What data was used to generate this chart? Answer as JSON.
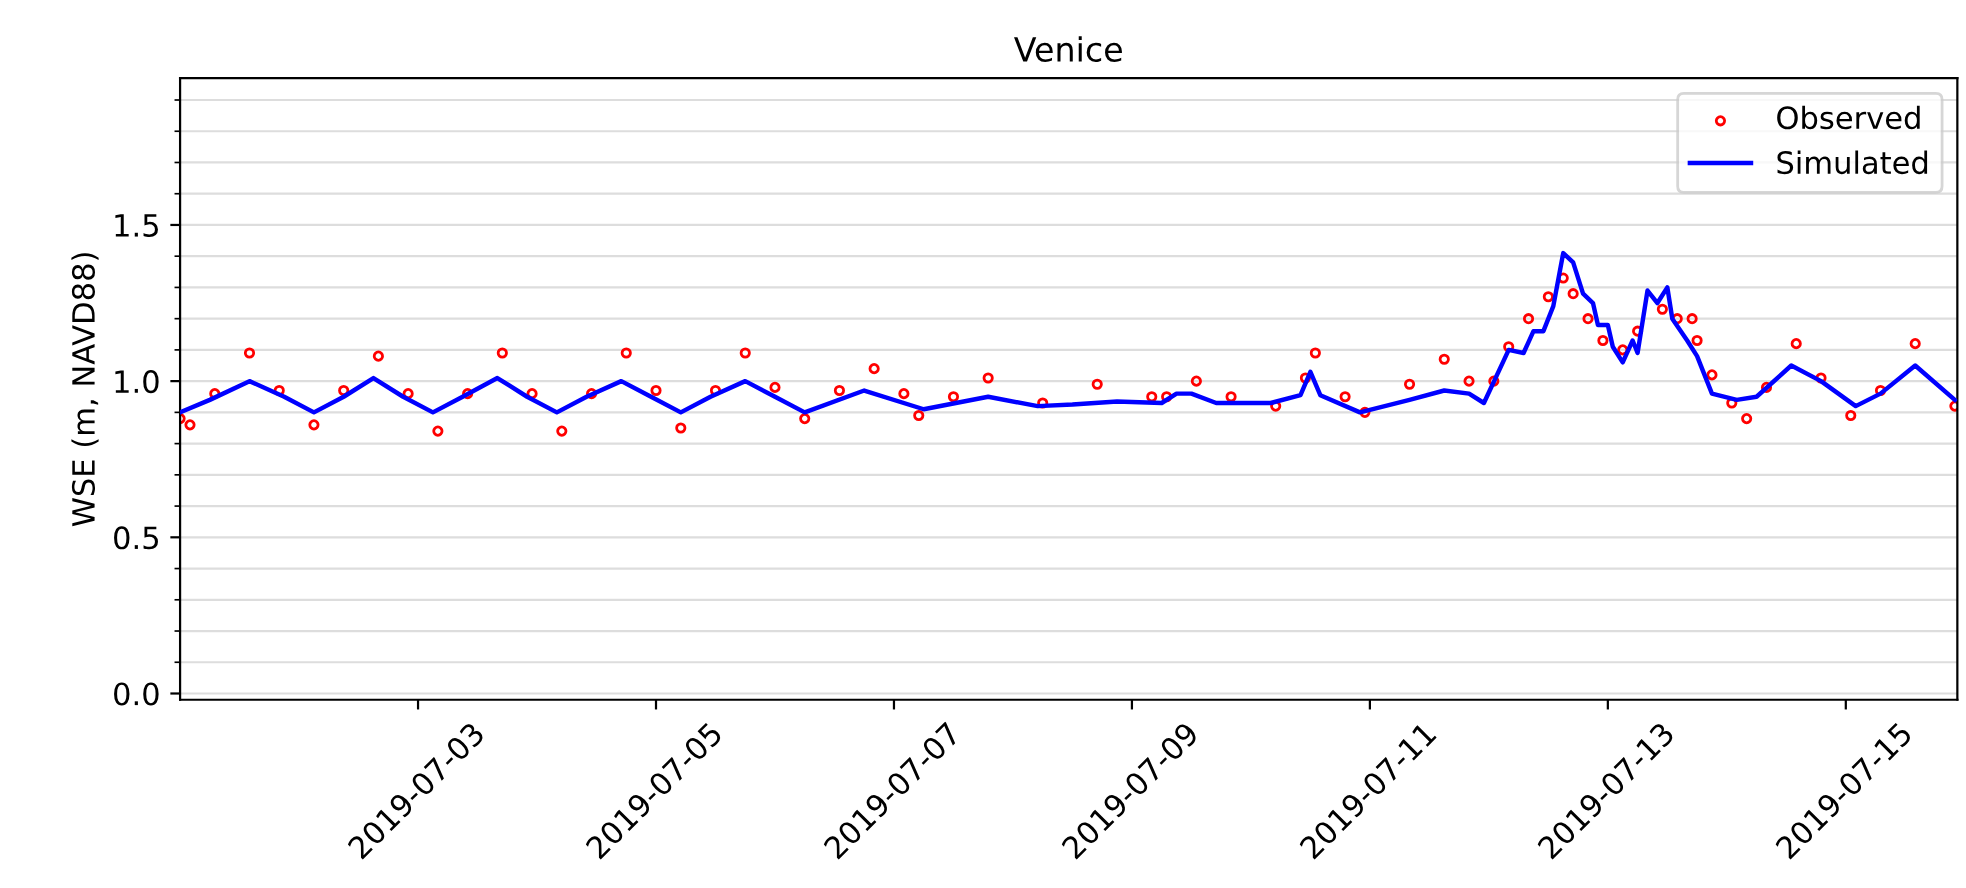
{
  "chart_data": {
    "type": "line",
    "title": "Venice",
    "ylabel": "WSE (m, NAVD88)",
    "xlim": [
      "2019-07-01T00:00",
      "2019-07-15T22:30"
    ],
    "xticks": [
      "2019-07-03",
      "2019-07-05",
      "2019-07-07",
      "2019-07-09",
      "2019-07-11",
      "2019-07-13",
      "2019-07-15"
    ],
    "ylim": [
      -0.02,
      1.97
    ],
    "yticks": [
      {
        "value": 0.0,
        "label": "0.0"
      },
      {
        "value": 0.1,
        "label": null
      },
      {
        "value": 0.2,
        "label": null
      },
      {
        "value": 0.3,
        "label": null
      },
      {
        "value": 0.4,
        "label": null
      },
      {
        "value": 0.5,
        "label": "0.5"
      },
      {
        "value": 0.6,
        "label": null
      },
      {
        "value": 0.7,
        "label": null
      },
      {
        "value": 0.8,
        "label": null
      },
      {
        "value": 0.9,
        "label": null
      },
      {
        "value": 1.0,
        "label": "1.0"
      },
      {
        "value": 1.1,
        "label": null
      },
      {
        "value": 1.2,
        "label": null
      },
      {
        "value": 1.3,
        "label": null
      },
      {
        "value": 1.4,
        "label": null
      },
      {
        "value": 1.5,
        "label": "1.5"
      },
      {
        "value": 1.6,
        "label": null
      },
      {
        "value": 1.7,
        "label": null
      },
      {
        "value": 1.8,
        "label": null
      },
      {
        "value": 1.9,
        "label": null
      }
    ],
    "grid": "y",
    "legend": "top right",
    "series": [
      {
        "name": "Observed",
        "type": "scatter",
        "marker": "circle",
        "color": "#ff0000",
        "x": [
          "2019-07-01T00:00",
          "2019-07-01T02:00",
          "2019-07-01T07:00",
          "2019-07-01T14:00",
          "2019-07-01T20:00",
          "2019-07-02T03:00",
          "2019-07-02T09:00",
          "2019-07-02T16:00",
          "2019-07-02T22:00",
          "2019-07-03T04:00",
          "2019-07-03T10:00",
          "2019-07-03T17:00",
          "2019-07-03T23:00",
          "2019-07-04T05:00",
          "2019-07-04T11:00",
          "2019-07-04T18:00",
          "2019-07-05T00:00",
          "2019-07-05T05:00",
          "2019-07-05T12:00",
          "2019-07-05T18:00",
          "2019-07-06T00:00",
          "2019-07-06T06:00",
          "2019-07-06T13:00",
          "2019-07-06T20:00",
          "2019-07-07T02:00",
          "2019-07-07T05:00",
          "2019-07-07T12:00",
          "2019-07-07T19:00",
          "2019-07-08T06:00",
          "2019-07-08T17:00",
          "2019-07-09T04:00",
          "2019-07-09T07:00",
          "2019-07-09T13:00",
          "2019-07-09T20:00",
          "2019-07-10T05:00",
          "2019-07-10T11:00",
          "2019-07-10T13:00",
          "2019-07-10T19:00",
          "2019-07-10T23:00",
          "2019-07-11T08:00",
          "2019-07-11T15:00",
          "2019-07-11T20:00",
          "2019-07-12T01:00",
          "2019-07-12T04:00",
          "2019-07-12T08:00",
          "2019-07-12T12:00",
          "2019-07-12T15:00",
          "2019-07-12T17:00",
          "2019-07-12T20:00",
          "2019-07-12T23:00",
          "2019-07-13T03:00",
          "2019-07-13T06:00",
          "2019-07-13T11:00",
          "2019-07-13T14:00",
          "2019-07-13T17:00",
          "2019-07-13T18:00",
          "2019-07-13T21:00",
          "2019-07-14T01:00",
          "2019-07-14T04:00",
          "2019-07-14T08:00",
          "2019-07-14T14:00",
          "2019-07-14T19:00",
          "2019-07-15T01:00",
          "2019-07-15T07:00",
          "2019-07-15T14:00",
          "2019-07-15T22:00"
        ],
        "values": [
          0.88,
          0.86,
          0.96,
          1.09,
          0.97,
          0.86,
          0.97,
          1.08,
          0.96,
          0.84,
          0.96,
          1.09,
          0.96,
          0.84,
          0.96,
          1.09,
          0.97,
          0.85,
          0.97,
          1.09,
          0.98,
          0.88,
          0.97,
          1.04,
          0.96,
          0.89,
          0.95,
          1.01,
          0.93,
          0.99,
          0.95,
          0.95,
          1.0,
          0.95,
          0.92,
          1.01,
          1.09,
          0.95,
          0.9,
          0.99,
          1.07,
          1.0,
          1.0,
          1.11,
          1.2,
          1.27,
          1.33,
          1.28,
          1.2,
          1.13,
          1.1,
          1.16,
          1.23,
          1.2,
          1.2,
          1.13,
          1.02,
          0.93,
          0.88,
          0.98,
          1.12,
          1.01,
          0.89,
          0.97,
          1.12,
          0.92
        ]
      },
      {
        "name": "Simulated",
        "marker": "none",
        "color": "#0000ff",
        "x": [
          "2019-07-01T00:00",
          "2019-07-01T06:00",
          "2019-07-01T14:00",
          "2019-07-01T21:00",
          "2019-07-02T03:00",
          "2019-07-02T09:00",
          "2019-07-02T15:00",
          "2019-07-02T21:00",
          "2019-07-03T03:00",
          "2019-07-03T09:00",
          "2019-07-03T16:00",
          "2019-07-03T22:00",
          "2019-07-04T04:00",
          "2019-07-04T10:00",
          "2019-07-04T17:00",
          "2019-07-04T23:00",
          "2019-07-05T05:00",
          "2019-07-05T11:00",
          "2019-07-05T18:00",
          "2019-07-06T00:00",
          "2019-07-06T06:00",
          "2019-07-06T18:00",
          "2019-07-07T06:00",
          "2019-07-07T19:00",
          "2019-07-08T05:00",
          "2019-07-08T12:00",
          "2019-07-08T21:00",
          "2019-07-09T06:00",
          "2019-07-09T09:00",
          "2019-07-09T12:00",
          "2019-07-09T17:00",
          "2019-07-10T04:00",
          "2019-07-10T10:00",
          "2019-07-10T12:00",
          "2019-07-10T14:00",
          "2019-07-10T22:00",
          "2019-07-11T08:00",
          "2019-07-11T15:00",
          "2019-07-11T20:00",
          "2019-07-11T23:00",
          "2019-07-12T04:00",
          "2019-07-12T07:00",
          "2019-07-12T09:00",
          "2019-07-12T11:00",
          "2019-07-12T13:00",
          "2019-07-12T15:00",
          "2019-07-12T17:00",
          "2019-07-12T19:00",
          "2019-07-12T21:00",
          "2019-07-12T22:00",
          "2019-07-13T00:00",
          "2019-07-13T01:00",
          "2019-07-13T03:00",
          "2019-07-13T05:00",
          "2019-07-13T06:00",
          "2019-07-13T08:00",
          "2019-07-13T10:00",
          "2019-07-13T12:00",
          "2019-07-13T13:00",
          "2019-07-13T16:00",
          "2019-07-13T18:00",
          "2019-07-13T21:00",
          "2019-07-14T02:00",
          "2019-07-14T06:00",
          "2019-07-14T13:00",
          "2019-07-14T19:00",
          "2019-07-15T02:00",
          "2019-07-15T07:00",
          "2019-07-15T14:00",
          "2019-07-15T22:00"
        ],
        "values": [
          0.9,
          0.94,
          1.0,
          0.95,
          0.9,
          0.95,
          1.01,
          0.95,
          0.9,
          0.95,
          1.01,
          0.95,
          0.9,
          0.95,
          1.0,
          0.95,
          0.9,
          0.95,
          1.0,
          0.95,
          0.9,
          0.97,
          0.91,
          0.95,
          0.92,
          0.925,
          0.935,
          0.93,
          0.96,
          0.96,
          0.93,
          0.93,
          0.955,
          1.03,
          0.955,
          0.9,
          0.94,
          0.97,
          0.96,
          0.93,
          1.1,
          1.09,
          1.16,
          1.16,
          1.24,
          1.41,
          1.38,
          1.28,
          1.25,
          1.18,
          1.18,
          1.11,
          1.06,
          1.13,
          1.09,
          1.29,
          1.25,
          1.3,
          1.2,
          1.13,
          1.08,
          0.96,
          0.94,
          0.95,
          1.05,
          1.0,
          0.92,
          0.96,
          1.05,
          0.94
        ]
      }
    ]
  }
}
